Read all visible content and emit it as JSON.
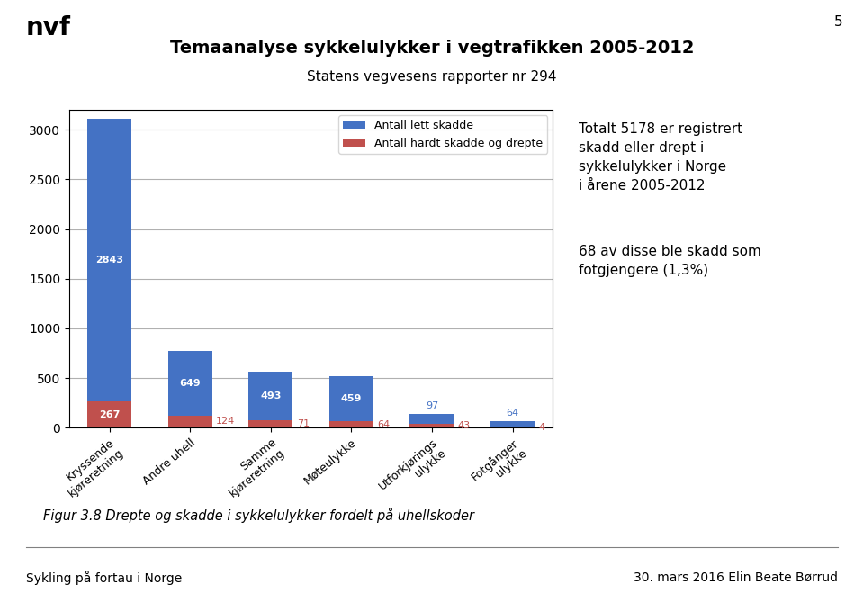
{
  "chart_data": {
    "type": "bar",
    "stacked": true,
    "title": "Temaanalyse sykkelulykker i vegtrafikken 2005-2012",
    "subtitle": "Statens vegvesens rapporter nr 294",
    "categories": [
      "Kryssende\nkjøreretning",
      "Andre uhell",
      "Samme\nkjøreretning",
      "Møteulykke",
      "Utforkjørings\nulykke",
      "Fotgånger\nulykke"
    ],
    "series": [
      {
        "name": "Antall hardt skadde og drepte",
        "color": "#C0504D",
        "values": [
          267,
          124,
          71,
          64,
          43,
          4
        ]
      },
      {
        "name": "Antall lett skadde",
        "color": "#4472C4",
        "values": [
          2843,
          649,
          493,
          459,
          97,
          64
        ]
      }
    ],
    "ylim": [
      0,
      3200
    ],
    "yticks": [
      0,
      500,
      1000,
      1500,
      2000,
      2500,
      3000
    ],
    "grid": true,
    "legend": "upper right",
    "data_labels": true,
    "logo": "nvf",
    "page_number": "5",
    "annotations": [
      "Totalt 5178 er registrert\nskadd eller drept i\nsykkelulykker i Norge\ni årene 2005-2012",
      "68 av disse ble skadd som\nfotgjengere (1,3%)"
    ],
    "caption": "Figur 3.8 Drepte og skadde i sykkelulykker fordelt på uhellskoder",
    "footer": [
      "Sykling på fortau i Norge",
      "30. mars 2016 Elin Beate Børrud"
    ]
  }
}
